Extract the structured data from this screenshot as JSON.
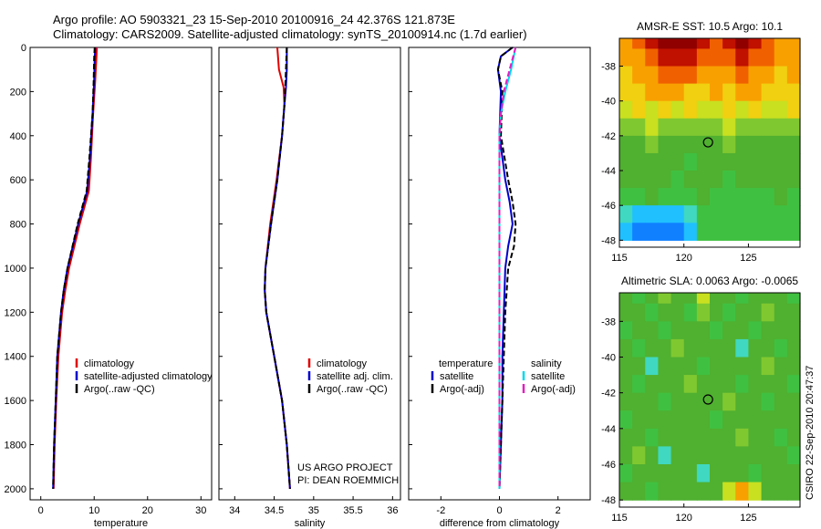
{
  "header": {
    "line1": "Argo profile: AO 5903321_23 15-Sep-2010 20100916_24 42.376S 121.873E",
    "line2": "Climatology: CARS2009. Satellite-adjusted climatology: synTS_20100914.nc (1.7d earlier)"
  },
  "side_label": "CSIRO 22-Sep-2010 20:47:37",
  "project_note": {
    "line1": "US ARGO PROJECT",
    "line2": "PI: DEAN ROEMMICH"
  },
  "colors": {
    "climatology": "#e00000",
    "satellite": "#0000cc",
    "argo": "#000000",
    "sat_salinity": "#00d8ee",
    "argo_salinity": "#e020c0"
  },
  "chart_data": [
    {
      "id": "temperature",
      "type": "line",
      "xlabel": "temperature",
      "xlim": [
        -2,
        32
      ],
      "xticks": [
        0,
        10,
        20,
        30
      ],
      "ylim": [
        0,
        2050
      ],
      "yticks": [
        0,
        200,
        400,
        600,
        800,
        1000,
        1200,
        1400,
        1600,
        1800,
        2000
      ],
      "y_reversed": true,
      "legend": {
        "position": "lower-right",
        "entries": [
          "climatology",
          "satellite-adjusted climatology",
          "Argo(..raw -QC)"
        ]
      },
      "series": [
        {
          "name": "climatology",
          "color": "#e00000",
          "dash": "solid",
          "depth": [
            0,
            50,
            150,
            300,
            500,
            650,
            800,
            1000,
            1100,
            1200,
            1400,
            1600,
            1800,
            2000
          ],
          "values": [
            10.5,
            10.4,
            10.2,
            9.8,
            9.4,
            9.0,
            7.3,
            5.3,
            4.6,
            4.0,
            3.3,
            2.9,
            2.6,
            2.4
          ]
        },
        {
          "name": "satellite-adjusted climatology",
          "color": "#0000cc",
          "dash": "solid",
          "depth": [
            0,
            50,
            150,
            300,
            500,
            650,
            800,
            1000,
            1100,
            1200,
            1400,
            1600,
            1800,
            2000
          ],
          "values": [
            10.2,
            10.1,
            10.0,
            9.7,
            9.2,
            8.7,
            7.0,
            5.0,
            4.3,
            3.8,
            3.1,
            2.8,
            2.5,
            2.3
          ]
        },
        {
          "name": "Argo(..raw -QC)",
          "color": "#000000",
          "dash": "dashed",
          "depth": [
            0,
            50,
            150,
            300,
            500,
            650,
            800,
            1000,
            1100,
            1200,
            1400,
            1600,
            1800,
            2000
          ],
          "values": [
            10.1,
            10.0,
            9.9,
            9.7,
            9.1,
            8.6,
            6.9,
            5.0,
            4.3,
            3.8,
            3.1,
            2.8,
            2.5,
            2.3
          ]
        }
      ]
    },
    {
      "id": "salinity",
      "type": "line",
      "xlabel": "salinity",
      "xlim": [
        33.8,
        36.1
      ],
      "xticks": [
        34,
        34.5,
        35,
        35.5,
        36
      ],
      "ylim": [
        0,
        2050
      ],
      "yticks": [
        0,
        200,
        400,
        600,
        800,
        1000,
        1200,
        1400,
        1600,
        1800,
        2000
      ],
      "y_reversed": true,
      "legend": {
        "position": "lower-right",
        "entries": [
          "climatology",
          "satellite adj. clim.",
          "Argo(..raw -QC)"
        ]
      },
      "series": [
        {
          "name": "climatology",
          "color": "#e00000",
          "dash": "solid",
          "depth": [
            0,
            100,
            180,
            260,
            400,
            600,
            800,
            1000,
            1100,
            1200,
            1400,
            1600,
            1800,
            2000
          ],
          "values": [
            34.54,
            34.56,
            34.62,
            34.63,
            34.6,
            34.53,
            34.45,
            34.39,
            34.38,
            34.4,
            34.5,
            34.6,
            34.66,
            34.7
          ]
        },
        {
          "name": "satellite adj. clim.",
          "color": "#0000cc",
          "dash": "solid",
          "depth": [
            0,
            100,
            180,
            260,
            400,
            600,
            800,
            1000,
            1100,
            1200,
            1400,
            1600,
            1800,
            2000
          ],
          "values": [
            34.66,
            34.66,
            34.65,
            34.63,
            34.6,
            34.54,
            34.46,
            34.39,
            34.38,
            34.4,
            34.5,
            34.6,
            34.66,
            34.7
          ]
        },
        {
          "name": "Argo(..raw -QC)",
          "color": "#000000",
          "dash": "dashed",
          "depth": [
            0,
            100,
            180,
            260,
            400,
            600,
            800,
            1000,
            1100,
            1200,
            1400,
            1600,
            1800,
            2000
          ],
          "values": [
            34.66,
            34.65,
            34.64,
            34.63,
            34.6,
            34.54,
            34.46,
            34.39,
            34.38,
            34.4,
            34.5,
            34.6,
            34.66,
            34.7
          ]
        }
      ]
    },
    {
      "id": "difference",
      "type": "line",
      "xlabel": "difference from climatology",
      "xlim": [
        -3.1,
        3.1
      ],
      "xticks": [
        -2,
        0,
        2
      ],
      "ylim": [
        0,
        2050
      ],
      "yticks": [
        0,
        200,
        400,
        600,
        800,
        1000,
        1200,
        1400,
        1600,
        1800,
        2000
      ],
      "y_reversed": true,
      "legend": {
        "position": "lower",
        "temperature_heading": "temperature",
        "salinity_heading": "salinity",
        "entries": [
          "satellite",
          "Argo(-adj)",
          "satellite",
          "Argo(-adj)"
        ]
      },
      "series": [
        {
          "name": "temperature satellite",
          "color": "#0000cc",
          "dash": "solid",
          "depth": [
            0,
            40,
            100,
            200,
            400,
            600,
            700,
            800,
            900,
            1000,
            1200,
            1400,
            1600,
            1800,
            2000
          ],
          "values": [
            0.45,
            0.05,
            -0.05,
            0.05,
            0.0,
            0.2,
            0.35,
            0.45,
            0.3,
            0.2,
            0.15,
            0.1,
            0.1,
            0.05,
            0.0
          ]
        },
        {
          "name": "temperature Argo(-adj)",
          "color": "#000000",
          "dash": "dashed",
          "depth": [
            0,
            40,
            100,
            200,
            400,
            600,
            700,
            800,
            900,
            1000,
            1200,
            1400,
            1600,
            1800,
            2000
          ],
          "values": [
            0.45,
            0.05,
            -0.05,
            0.1,
            0.05,
            0.3,
            0.45,
            0.55,
            0.5,
            0.3,
            0.2,
            0.15,
            0.1,
            0.05,
            0.0
          ]
        },
        {
          "name": "salinity satellite",
          "color": "#00d8ee",
          "dash": "solid",
          "depth": [
            0,
            100,
            200,
            300,
            400,
            600,
            800,
            1000,
            1200,
            1400,
            1600,
            1800,
            2000
          ],
          "values": [
            0.55,
            0.4,
            0.2,
            0.05,
            0.0,
            0.0,
            0.0,
            0.0,
            0.0,
            0.0,
            0.0,
            0.0,
            0.0
          ]
        },
        {
          "name": "salinity Argo(-adj)",
          "color": "#e020c0",
          "dash": "dashed",
          "depth": [
            0,
            100,
            200,
            300,
            400,
            600,
            800,
            1000,
            1200,
            1400,
            1600,
            1800,
            2000
          ],
          "values": [
            0.55,
            0.35,
            0.15,
            0.05,
            0.0,
            0.0,
            0.0,
            0.0,
            0.0,
            0.0,
            0.0,
            0.0,
            0.0
          ]
        }
      ]
    },
    {
      "id": "sst_map",
      "type": "heatmap",
      "title": "AMSR-E SST: 10.5 Argo: 10.1",
      "xlim": [
        115,
        129
      ],
      "xticks": [
        115,
        120,
        125
      ],
      "ylim": [
        -48.4,
        -36.4
      ],
      "yticks": [
        -38,
        -40,
        -42,
        -44,
        -46,
        -48
      ],
      "marker": {
        "lon": 121.873,
        "lat": -42.376
      },
      "palette": [
        "#1080ff",
        "#20c0ff",
        "#40d8c0",
        "#40c040",
        "#50b030",
        "#80c830",
        "#c8e020",
        "#f0d010",
        "#f8a000",
        "#f06000",
        "#c01000",
        "#900000"
      ],
      "grid": {
        "rows_lat": [
          -36.5,
          -37.5,
          -38.5,
          -39.5,
          -40.5,
          -41.5,
          -42.5,
          -43.5,
          -44.5,
          -45.5,
          -46.5,
          -47.5
        ],
        "cols_lon": [
          115.5,
          116.5,
          117.5,
          118.5,
          119.5,
          120.5,
          121.5,
          122.5,
          123.5,
          124.5,
          125.5,
          126.5,
          127.5,
          128.5
        ],
        "values": [
          [
            8,
            9,
            10,
            11,
            11,
            11,
            10,
            9,
            10,
            11,
            10,
            9,
            8,
            8
          ],
          [
            8,
            8,
            9,
            10,
            10,
            10,
            9,
            9,
            9,
            10,
            9,
            9,
            8,
            8
          ],
          [
            7,
            8,
            8,
            9,
            9,
            9,
            8,
            8,
            8,
            9,
            8,
            8,
            7,
            8
          ],
          [
            7,
            7,
            8,
            8,
            8,
            7,
            7,
            8,
            7,
            8,
            8,
            7,
            7,
            7
          ],
          [
            6,
            7,
            6,
            7,
            6,
            7,
            6,
            6,
            7,
            6,
            7,
            6,
            6,
            7
          ],
          [
            5,
            5,
            6,
            5,
            5,
            5,
            5,
            5,
            6,
            5,
            5,
            5,
            5,
            5
          ],
          [
            4,
            4,
            5,
            4,
            4,
            4,
            4,
            4,
            5,
            4,
            4,
            4,
            4,
            4
          ],
          [
            4,
            4,
            4,
            4,
            4,
            3,
            4,
            4,
            4,
            4,
            4,
            4,
            4,
            4
          ],
          [
            4,
            4,
            4,
            4,
            3,
            4,
            4,
            4,
            3,
            4,
            4,
            4,
            4,
            4
          ],
          [
            3,
            3,
            4,
            3,
            3,
            3,
            4,
            3,
            3,
            3,
            3,
            3,
            4,
            3
          ],
          [
            2,
            1,
            1,
            1,
            1,
            2,
            3,
            3,
            3,
            3,
            3,
            3,
            3,
            3
          ],
          [
            1,
            0,
            0,
            0,
            0,
            1,
            3,
            3,
            3,
            3,
            3,
            3,
            3,
            3
          ]
        ]
      }
    },
    {
      "id": "sla_map",
      "type": "heatmap",
      "title": "Altimetric SLA: 0.0063 Argo: -0.0065",
      "xlim": [
        115,
        129
      ],
      "xticks": [
        115,
        120,
        125
      ],
      "ylim": [
        -48.4,
        -36.4
      ],
      "yticks": [
        -38,
        -40,
        -42,
        -44,
        -46,
        -48
      ],
      "marker": {
        "lon": 121.873,
        "lat": -42.376
      },
      "palette": [
        "#1080ff",
        "#20c0ff",
        "#40d8c0",
        "#40c040",
        "#50b030",
        "#80c830",
        "#c8e020",
        "#f0d010",
        "#f8a000",
        "#f06000",
        "#c01000",
        "#900000"
      ],
      "grid": {
        "rows_lat": [
          -36.5,
          -37.5,
          -38.5,
          -39.5,
          -40.5,
          -41.5,
          -42.5,
          -43.5,
          -44.5,
          -45.5,
          -46.5,
          -47.5
        ],
        "cols_lon": [
          115.5,
          116.5,
          117.5,
          118.5,
          119.5,
          120.5,
          121.5,
          122.5,
          123.5,
          124.5,
          125.5,
          126.5,
          127.5,
          128.5
        ],
        "values": [
          [
            4,
            3,
            4,
            5,
            4,
            4,
            6,
            4,
            4,
            3,
            4,
            4,
            4,
            3
          ],
          [
            4,
            4,
            3,
            4,
            4,
            3,
            5,
            4,
            3,
            4,
            4,
            5,
            4,
            4
          ],
          [
            3,
            4,
            4,
            3,
            4,
            4,
            4,
            3,
            4,
            4,
            3,
            4,
            4,
            4
          ],
          [
            4,
            3,
            4,
            4,
            5,
            4,
            4,
            4,
            4,
            2,
            4,
            4,
            3,
            4
          ],
          [
            4,
            4,
            2,
            4,
            4,
            4,
            3,
            4,
            4,
            4,
            4,
            5,
            4,
            4
          ],
          [
            4,
            3,
            4,
            4,
            4,
            5,
            4,
            4,
            4,
            3,
            4,
            4,
            4,
            3
          ],
          [
            4,
            4,
            4,
            3,
            4,
            4,
            4,
            4,
            5,
            4,
            4,
            3,
            4,
            4
          ],
          [
            3,
            4,
            4,
            4,
            4,
            4,
            4,
            3,
            4,
            4,
            4,
            4,
            4,
            4
          ],
          [
            4,
            4,
            3,
            4,
            4,
            4,
            4,
            4,
            4,
            5,
            4,
            4,
            3,
            4
          ],
          [
            4,
            5,
            4,
            2,
            4,
            4,
            4,
            4,
            4,
            4,
            4,
            4,
            4,
            3
          ],
          [
            3,
            4,
            4,
            4,
            4,
            4,
            2,
            4,
            4,
            4,
            3,
            4,
            4,
            4
          ],
          [
            4,
            4,
            3,
            4,
            4,
            4,
            4,
            4,
            6,
            8,
            6,
            4,
            4,
            4
          ]
        ]
      }
    }
  ]
}
